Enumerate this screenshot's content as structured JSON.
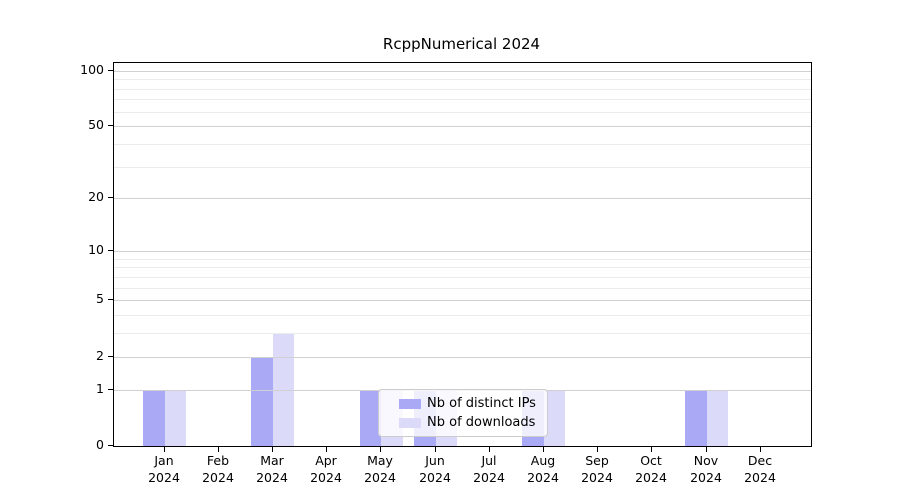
{
  "chart_data": {
    "type": "bar",
    "title": "RcppNumerical 2024",
    "categories": [
      {
        "month": "Jan",
        "year": "2024"
      },
      {
        "month": "Feb",
        "year": "2024"
      },
      {
        "month": "Mar",
        "year": "2024"
      },
      {
        "month": "Apr",
        "year": "2024"
      },
      {
        "month": "May",
        "year": "2024"
      },
      {
        "month": "Jun",
        "year": "2024"
      },
      {
        "month": "Jul",
        "year": "2024"
      },
      {
        "month": "Aug",
        "year": "2024"
      },
      {
        "month": "Sep",
        "year": "2024"
      },
      {
        "month": "Oct",
        "year": "2024"
      },
      {
        "month": "Nov",
        "year": "2024"
      },
      {
        "month": "Dec",
        "year": "2024"
      }
    ],
    "series": [
      {
        "name": "Nb of distinct IPs",
        "color": "#a9a9f6",
        "values": [
          1,
          0,
          2,
          0,
          1,
          1,
          0,
          1,
          0,
          0,
          1,
          0
        ]
      },
      {
        "name": "Nb of downloads",
        "color": "#dbdaf9",
        "values": [
          1,
          0,
          3,
          0,
          1,
          1,
          0,
          1,
          0,
          0,
          1,
          0
        ]
      }
    ],
    "y_axis": {
      "scale": "log1p",
      "ylim": [
        0,
        110
      ],
      "ticks": [
        0,
        1,
        2,
        5,
        10,
        20,
        50,
        100
      ]
    },
    "x_axis": {
      "tick_years": "2024"
    },
    "gridlines": {
      "major": [
        1,
        2,
        5,
        10,
        20,
        50,
        100
      ],
      "minor": [
        3,
        4,
        6,
        7,
        8,
        9,
        30,
        40,
        60,
        70,
        80,
        90
      ],
      "major_color": "#d0d0d0",
      "minor_color": "#ebebeb"
    },
    "legend": {
      "position": "inside-bottom-center"
    },
    "colors": {
      "axis": "#000000",
      "background": "#ffffff",
      "text": "#000000"
    }
  }
}
